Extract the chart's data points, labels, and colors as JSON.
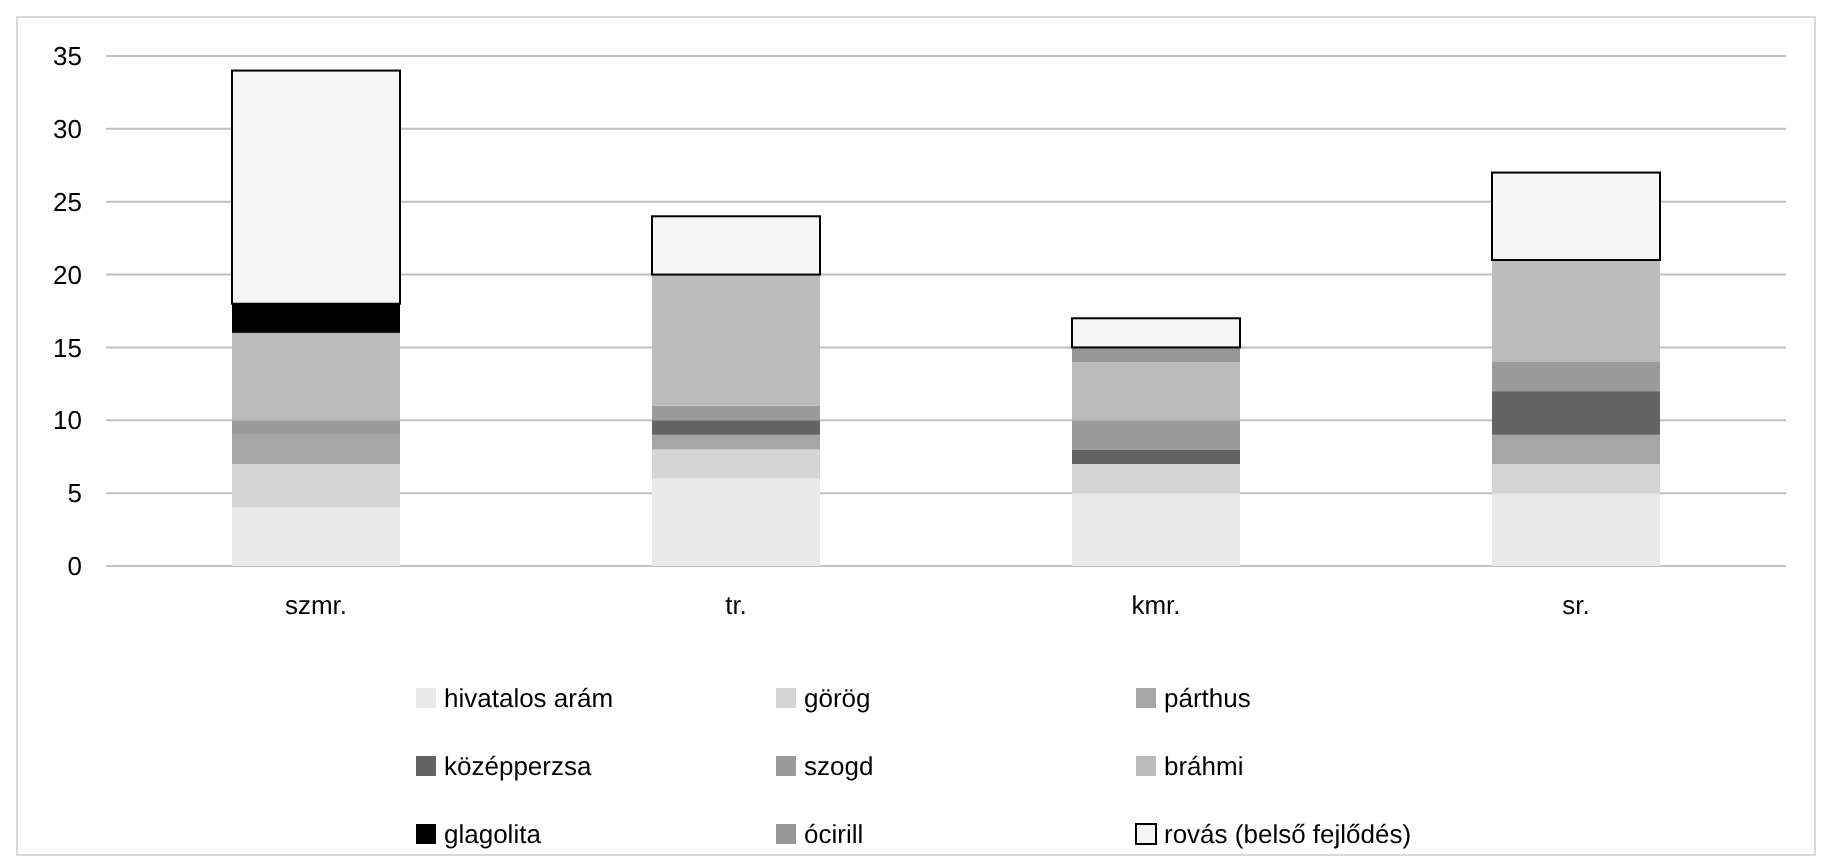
{
  "chart_data": {
    "type": "bar",
    "stacked": true,
    "categories": [
      "szmr.",
      "tr.",
      "kmr.",
      "sr."
    ],
    "series": [
      {
        "name": "hivatalos arám",
        "color": "#e9e9e9",
        "values": [
          4,
          6,
          5,
          5
        ]
      },
      {
        "name": "görög",
        "color": "#d5d5d5",
        "values": [
          3,
          2,
          2,
          2
        ]
      },
      {
        "name": "párthus",
        "color": "#a6a6a6",
        "values": [
          2,
          1,
          0,
          2
        ]
      },
      {
        "name": "középperzsa",
        "color": "#636363",
        "values": [
          0,
          1,
          1,
          3
        ]
      },
      {
        "name": "szogd",
        "color": "#9b9b9b",
        "values": [
          1,
          1,
          2,
          2
        ]
      },
      {
        "name": "bráhmi",
        "color": "#bbbbbb",
        "values": [
          6,
          9,
          4,
          7
        ]
      },
      {
        "name": "glagolita",
        "color": "#000000",
        "values": [
          2,
          0,
          0,
          0
        ]
      },
      {
        "name": "ócirill",
        "color": "#969696",
        "values": [
          0,
          0,
          1,
          0
        ]
      },
      {
        "name": "rovás (belső fejlődés)",
        "color": "#f5f5f5",
        "values": [
          16,
          4,
          2,
          6
        ]
      }
    ],
    "ylim": [
      0,
      35
    ],
    "yticks": [
      0,
      5,
      10,
      15,
      20,
      25,
      30,
      35
    ],
    "grid": "y",
    "legend": "bottom"
  }
}
